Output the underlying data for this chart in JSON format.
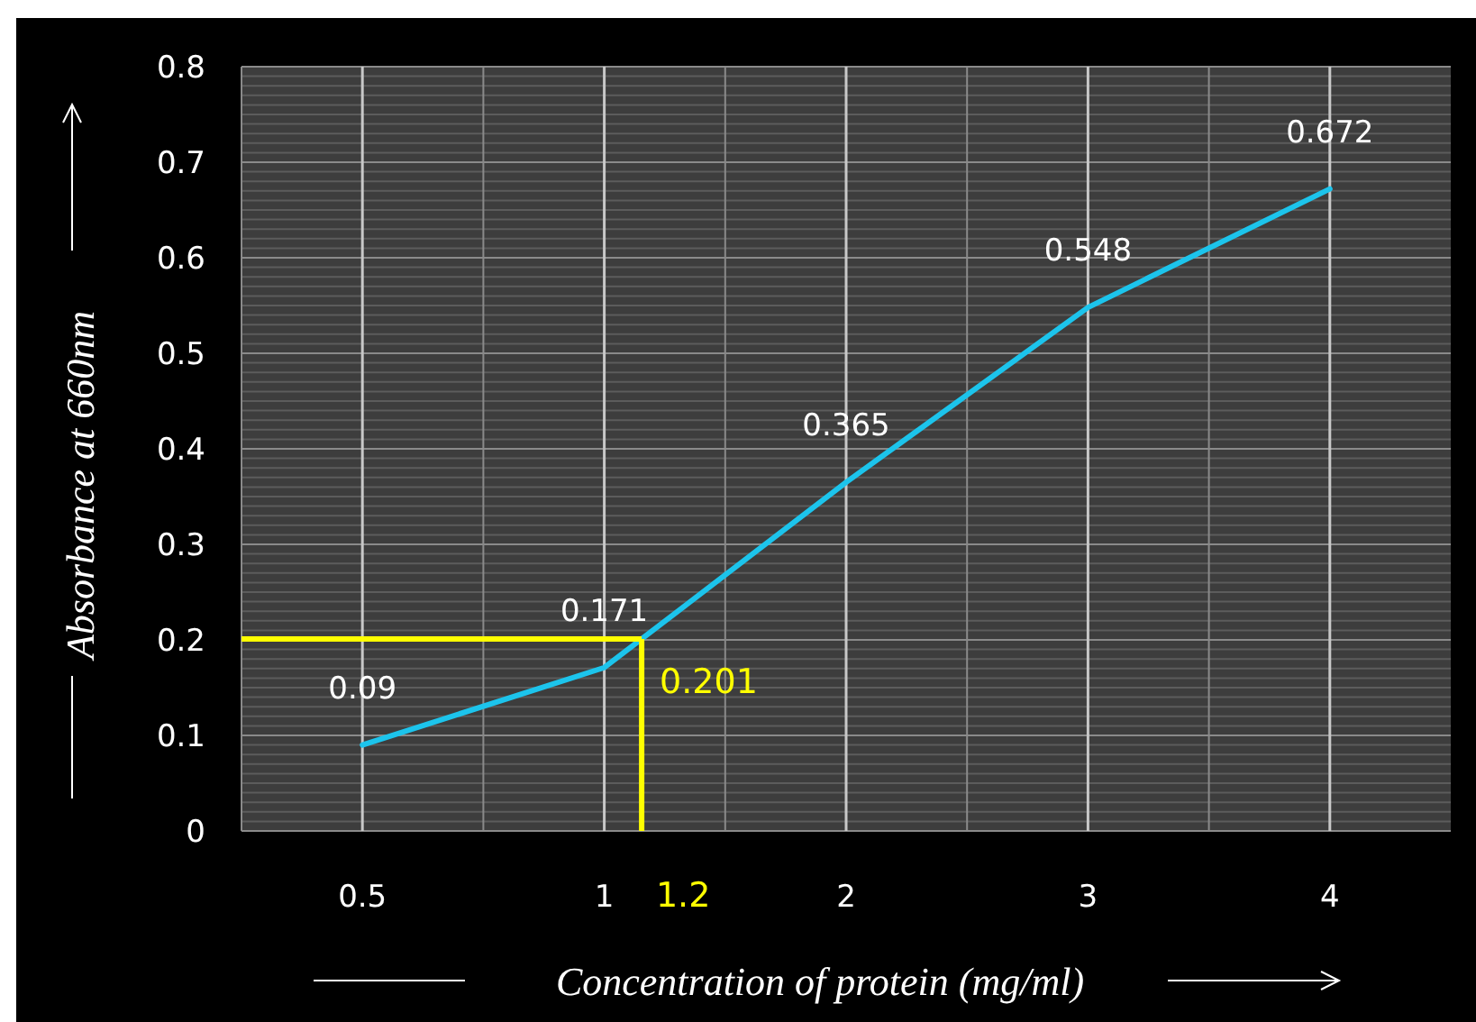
{
  "chart_data": {
    "type": "line",
    "xlabel": "Concentration of protein (mg/ml)",
    "ylabel": "Absorbance at 660nm",
    "categories": [
      "0.5",
      "1",
      "2",
      "3",
      "4"
    ],
    "series": [
      {
        "color": "#1cc4ec",
        "values": [
          0.09,
          0.171,
          0.365,
          0.548,
          0.672
        ]
      }
    ],
    "ylim": [
      0,
      0.8
    ],
    "yticks": [
      0,
      0.1,
      0.2,
      0.3,
      0.4,
      0.5,
      0.6,
      0.7,
      0.8
    ],
    "grid": true,
    "data_labels": true,
    "marker": "none",
    "line_style": "solid",
    "annotations": [
      "1.2"
    ],
    "ref_lines": [
      {
        "axis": "y",
        "value": 0.201,
        "label": "0.201",
        "color": "#ffff00"
      }
    ]
  }
}
